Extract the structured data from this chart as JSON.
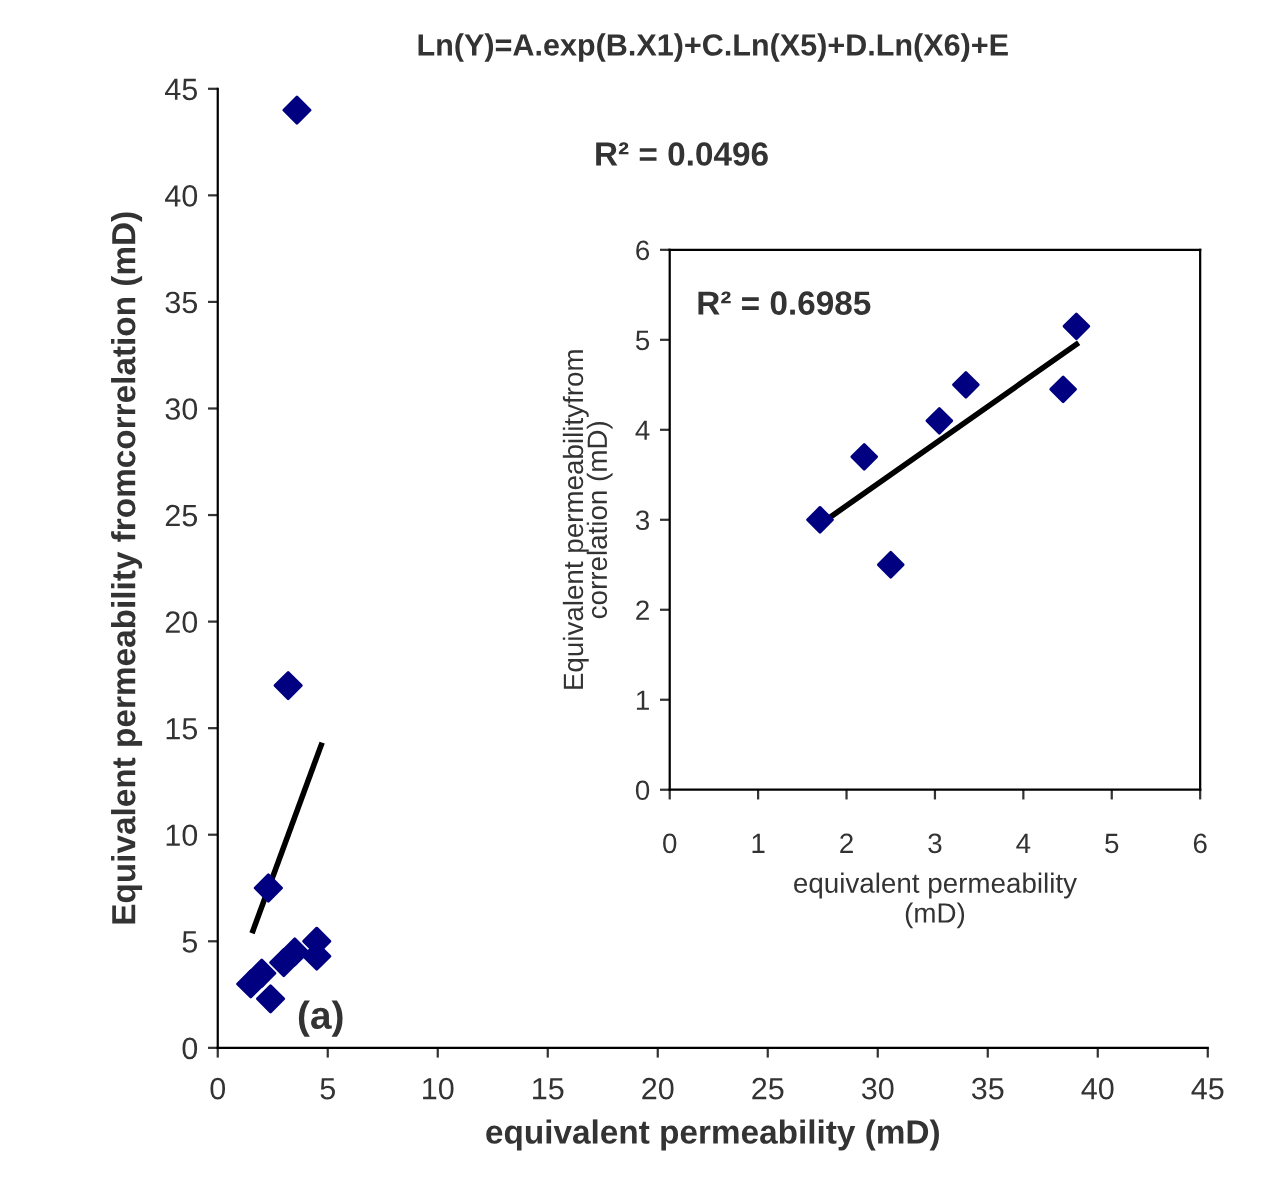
{
  "chart_data": [
    {
      "type": "scatter",
      "title": "Ln(Y)=A.exp(B.X1)+C.Ln(X5)+D.Ln(X6)+E",
      "xlabel": "equivalent permeability (mD)",
      "ylabel": "Equivalent permeability fromcorrelation (mD)",
      "xlim": [
        0,
        45
      ],
      "ylim": [
        0,
        45
      ],
      "xticks": [
        0,
        5,
        10,
        15,
        20,
        25,
        30,
        35,
        40,
        45
      ],
      "yticks": [
        0,
        5,
        10,
        15,
        20,
        25,
        30,
        35,
        40,
        45
      ],
      "grid": false,
      "legend": false,
      "marker": "diamond",
      "annotations": [
        "R² = 0.0496",
        "(a)"
      ],
      "series": [
        {
          "color": "#000080",
          "x": [
            1.5,
            2.0,
            2.4,
            2.3,
            3.0,
            3.5,
            4.5,
            4.5,
            3.2,
            3.6
          ],
          "values": [
            3.0,
            3.5,
            2.3,
            7.5,
            4.0,
            4.5,
            4.3,
            5.0,
            17.0,
            44.0
          ]
        },
        {
          "type": "line",
          "color": "#000000",
          "x": [
            1.6,
            4.7
          ],
          "values": [
            5.5,
            14.2
          ],
          "marker": "none",
          "line_style": "solid"
        }
      ]
    },
    {
      "type": "scatter",
      "xlabel": "equivalent permeability\n(mD)",
      "ylabel": "Equivalent permeabilityfrom\ncorrelation (mD)",
      "xlim": [
        0,
        6
      ],
      "ylim": [
        0,
        6
      ],
      "xticks": [
        0,
        1,
        2,
        3,
        4,
        5,
        6
      ],
      "yticks": [
        0,
        1,
        2,
        3,
        4,
        5,
        6
      ],
      "grid": false,
      "legend": false,
      "marker": "diamond",
      "annotations": [
        "R² = 0.6985"
      ],
      "series": [
        {
          "color": "#000080",
          "x": [
            1.7,
            2.2,
            2.5,
            3.05,
            3.35,
            4.45,
            4.6
          ],
          "values": [
            3.0,
            3.7,
            2.5,
            4.1,
            4.5,
            4.45,
            5.15
          ]
        },
        {
          "type": "line",
          "color": "#000000",
          "x": [
            1.7,
            4.6
          ],
          "values": [
            2.95,
            4.95
          ],
          "marker": "none",
          "line_style": "solid"
        }
      ]
    }
  ]
}
